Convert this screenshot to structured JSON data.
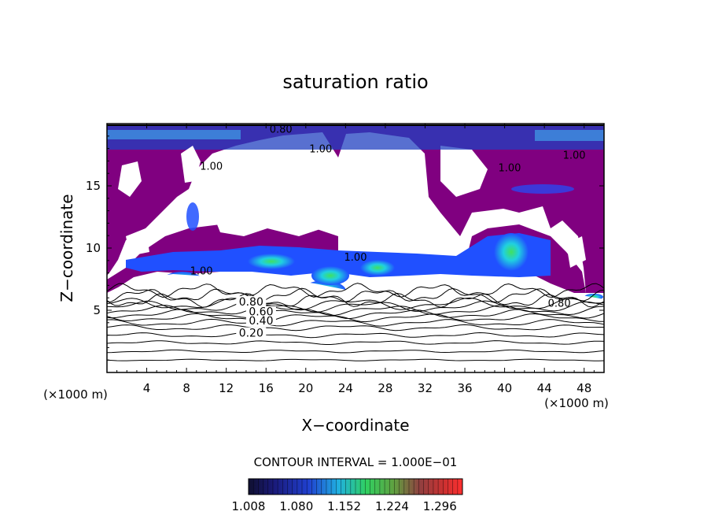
{
  "chart_data": {
    "type": "heatmap",
    "title": "saturation ratio",
    "xlabel": "X−coordinate",
    "ylabel": "Z−coordinate",
    "x_unit_left": "(×1000 m)",
    "x_unit_right": "(×1000 m)",
    "xlim": [
      0,
      50
    ],
    "ylim": [
      0,
      20
    ],
    "x_ticks": [
      4,
      8,
      12,
      16,
      20,
      24,
      28,
      32,
      36,
      40,
      44,
      48
    ],
    "y_ticks": [
      5,
      10,
      15
    ],
    "contour_interval_text": "CONTOUR INTERVAL = 1.000E−01",
    "colorbar_labels": [
      "1.008",
      "1.080",
      "1.152",
      "1.224",
      "1.296"
    ],
    "colorbar_range": [
      1.008,
      1.33
    ],
    "colors": {
      "purple": "#800080",
      "dark_blue": "#1f1f8f",
      "blue": "#2050ff",
      "cyan": "#20d0e0",
      "green": "#40e060"
    },
    "contour_levels": [
      {
        "label": "0.20",
        "z": 3.0,
        "x": 14.5
      },
      {
        "label": "0.40",
        "z": 4.0,
        "x": 15.5
      },
      {
        "label": "0.60",
        "z": 4.7,
        "x": 15.5
      },
      {
        "label": "0.80",
        "z": 5.5,
        "x": 14.5
      }
    ],
    "contour_labels": [
      {
        "label": "0.80",
        "x": 45.5,
        "z": 5.6
      },
      {
        "label": "1.00",
        "x": 25.0,
        "z": 9.3
      },
      {
        "label": "1.00",
        "x": 9.5,
        "z": 8.2
      },
      {
        "label": "1.00",
        "x": 10.5,
        "z": 16.6
      },
      {
        "label": "1.00",
        "x": 21.5,
        "z": 18.0
      },
      {
        "label": "1.00",
        "x": 40.5,
        "z": 16.5
      },
      {
        "label": "1.00",
        "x": 47.0,
        "z": 17.5
      },
      {
        "label": "0.80",
        "x": 17.5,
        "z": 19.6
      }
    ]
  }
}
